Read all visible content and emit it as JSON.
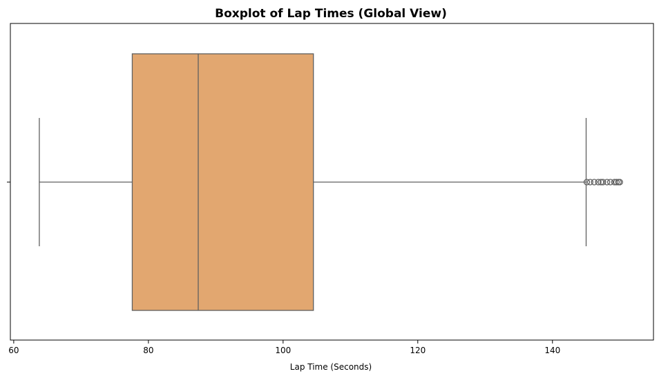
{
  "chart_data": {
    "type": "boxplot",
    "orientation": "horizontal",
    "title": "Boxplot of Lap Times (Global View)",
    "xlabel": "Lap Time (Seconds)",
    "ylabel": "",
    "xlim": [
      59.5,
      155
    ],
    "xticks": [
      60,
      80,
      100,
      120,
      140
    ],
    "grid": false,
    "box": {
      "whisker_low": 63.8,
      "q1": 77.6,
      "median": 87.4,
      "q3": 104.5,
      "whisker_high": 145.0,
      "outliers": [
        145.1,
        145.6,
        146.2,
        146.8,
        147.2,
        147.5,
        148.1,
        148.6,
        149.2,
        149.5,
        149.8,
        150.0
      ]
    },
    "colors": {
      "box_fill": "#e2a770",
      "line": "#5f5f5f"
    }
  }
}
